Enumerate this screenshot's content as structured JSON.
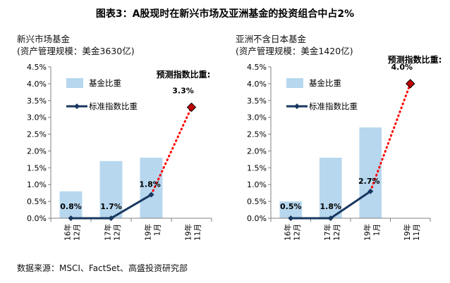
{
  "figure_title": "图表3：A股现时在新兴市场及亚洲基金的投资组合中占2%",
  "footnote": "数据来源：MSCI、FactSet、高盛投资研究部",
  "colors": {
    "bar": "#b7d7ef",
    "line": "#17375e",
    "projection": "#ff0000",
    "projection_marker": "#c00000"
  },
  "chart_data": [
    {
      "type": "bar",
      "title": "新兴市场基金",
      "subtitle": "(资产管理规模：美金3630亿)",
      "categories": [
        "16年 12月",
        "17年 12月",
        "19年 1月",
        "19年 11月"
      ],
      "category_lines": [
        [
          "16年",
          "12月"
        ],
        [
          "17年",
          "12月"
        ],
        [
          "19年",
          "1月"
        ],
        [
          "19年",
          "11月"
        ]
      ],
      "series": [
        {
          "name": "基金比重",
          "type": "bar",
          "values": [
            0.8,
            1.7,
            1.8,
            null
          ]
        },
        {
          "name": "标准指数比重",
          "type": "line",
          "values": [
            0.0,
            0.0,
            0.7,
            null
          ]
        }
      ],
      "projection": {
        "from_index": 2,
        "to_index": 3,
        "values": [
          0.7,
          3.3
        ],
        "label": "3.3%"
      },
      "projection_title": "预测指数比重:",
      "data_labels": [
        "0.8%",
        "1.7%",
        "1.8%"
      ],
      "y_ticks": [
        "0.0%",
        "0.5%",
        "1.0%",
        "1.5%",
        "2.0%",
        "2.5%",
        "3.0%",
        "3.5%",
        "4.0%",
        "4.5%"
      ],
      "ylim": [
        0,
        4.5
      ],
      "legend_position": "top-left",
      "grid": false
    },
    {
      "type": "bar",
      "title": "亚洲不含日本基金",
      "subtitle": "(资产管理规模：美金1420亿)",
      "categories": [
        "16年 12月",
        "17年 12月",
        "19年 1月",
        "19年 11月"
      ],
      "category_lines": [
        [
          "16年",
          "12月"
        ],
        [
          "17年",
          "12月"
        ],
        [
          "19年",
          "1月"
        ],
        [
          "19年",
          "11月"
        ]
      ],
      "series": [
        {
          "name": "基金比重",
          "type": "bar",
          "values": [
            0.5,
            1.8,
            2.7,
            null
          ]
        },
        {
          "name": "标准指数比重",
          "type": "line",
          "values": [
            0.0,
            0.0,
            0.8,
            null
          ]
        }
      ],
      "projection": {
        "from_index": 2,
        "to_index": 3,
        "values": [
          0.8,
          4.0
        ],
        "label": "4.0%"
      },
      "projection_title": "预测指数比重:",
      "data_labels": [
        "0.5%",
        "1.8%",
        "2.7%"
      ],
      "y_ticks": [
        "0.0%",
        "0.5%",
        "1.0%",
        "1.5%",
        "2.0%",
        "2.5%",
        "3.0%",
        "3.5%",
        "4.0%",
        "4.5%"
      ],
      "ylim": [
        0,
        4.5
      ],
      "legend_position": "top-left",
      "grid": false
    }
  ]
}
